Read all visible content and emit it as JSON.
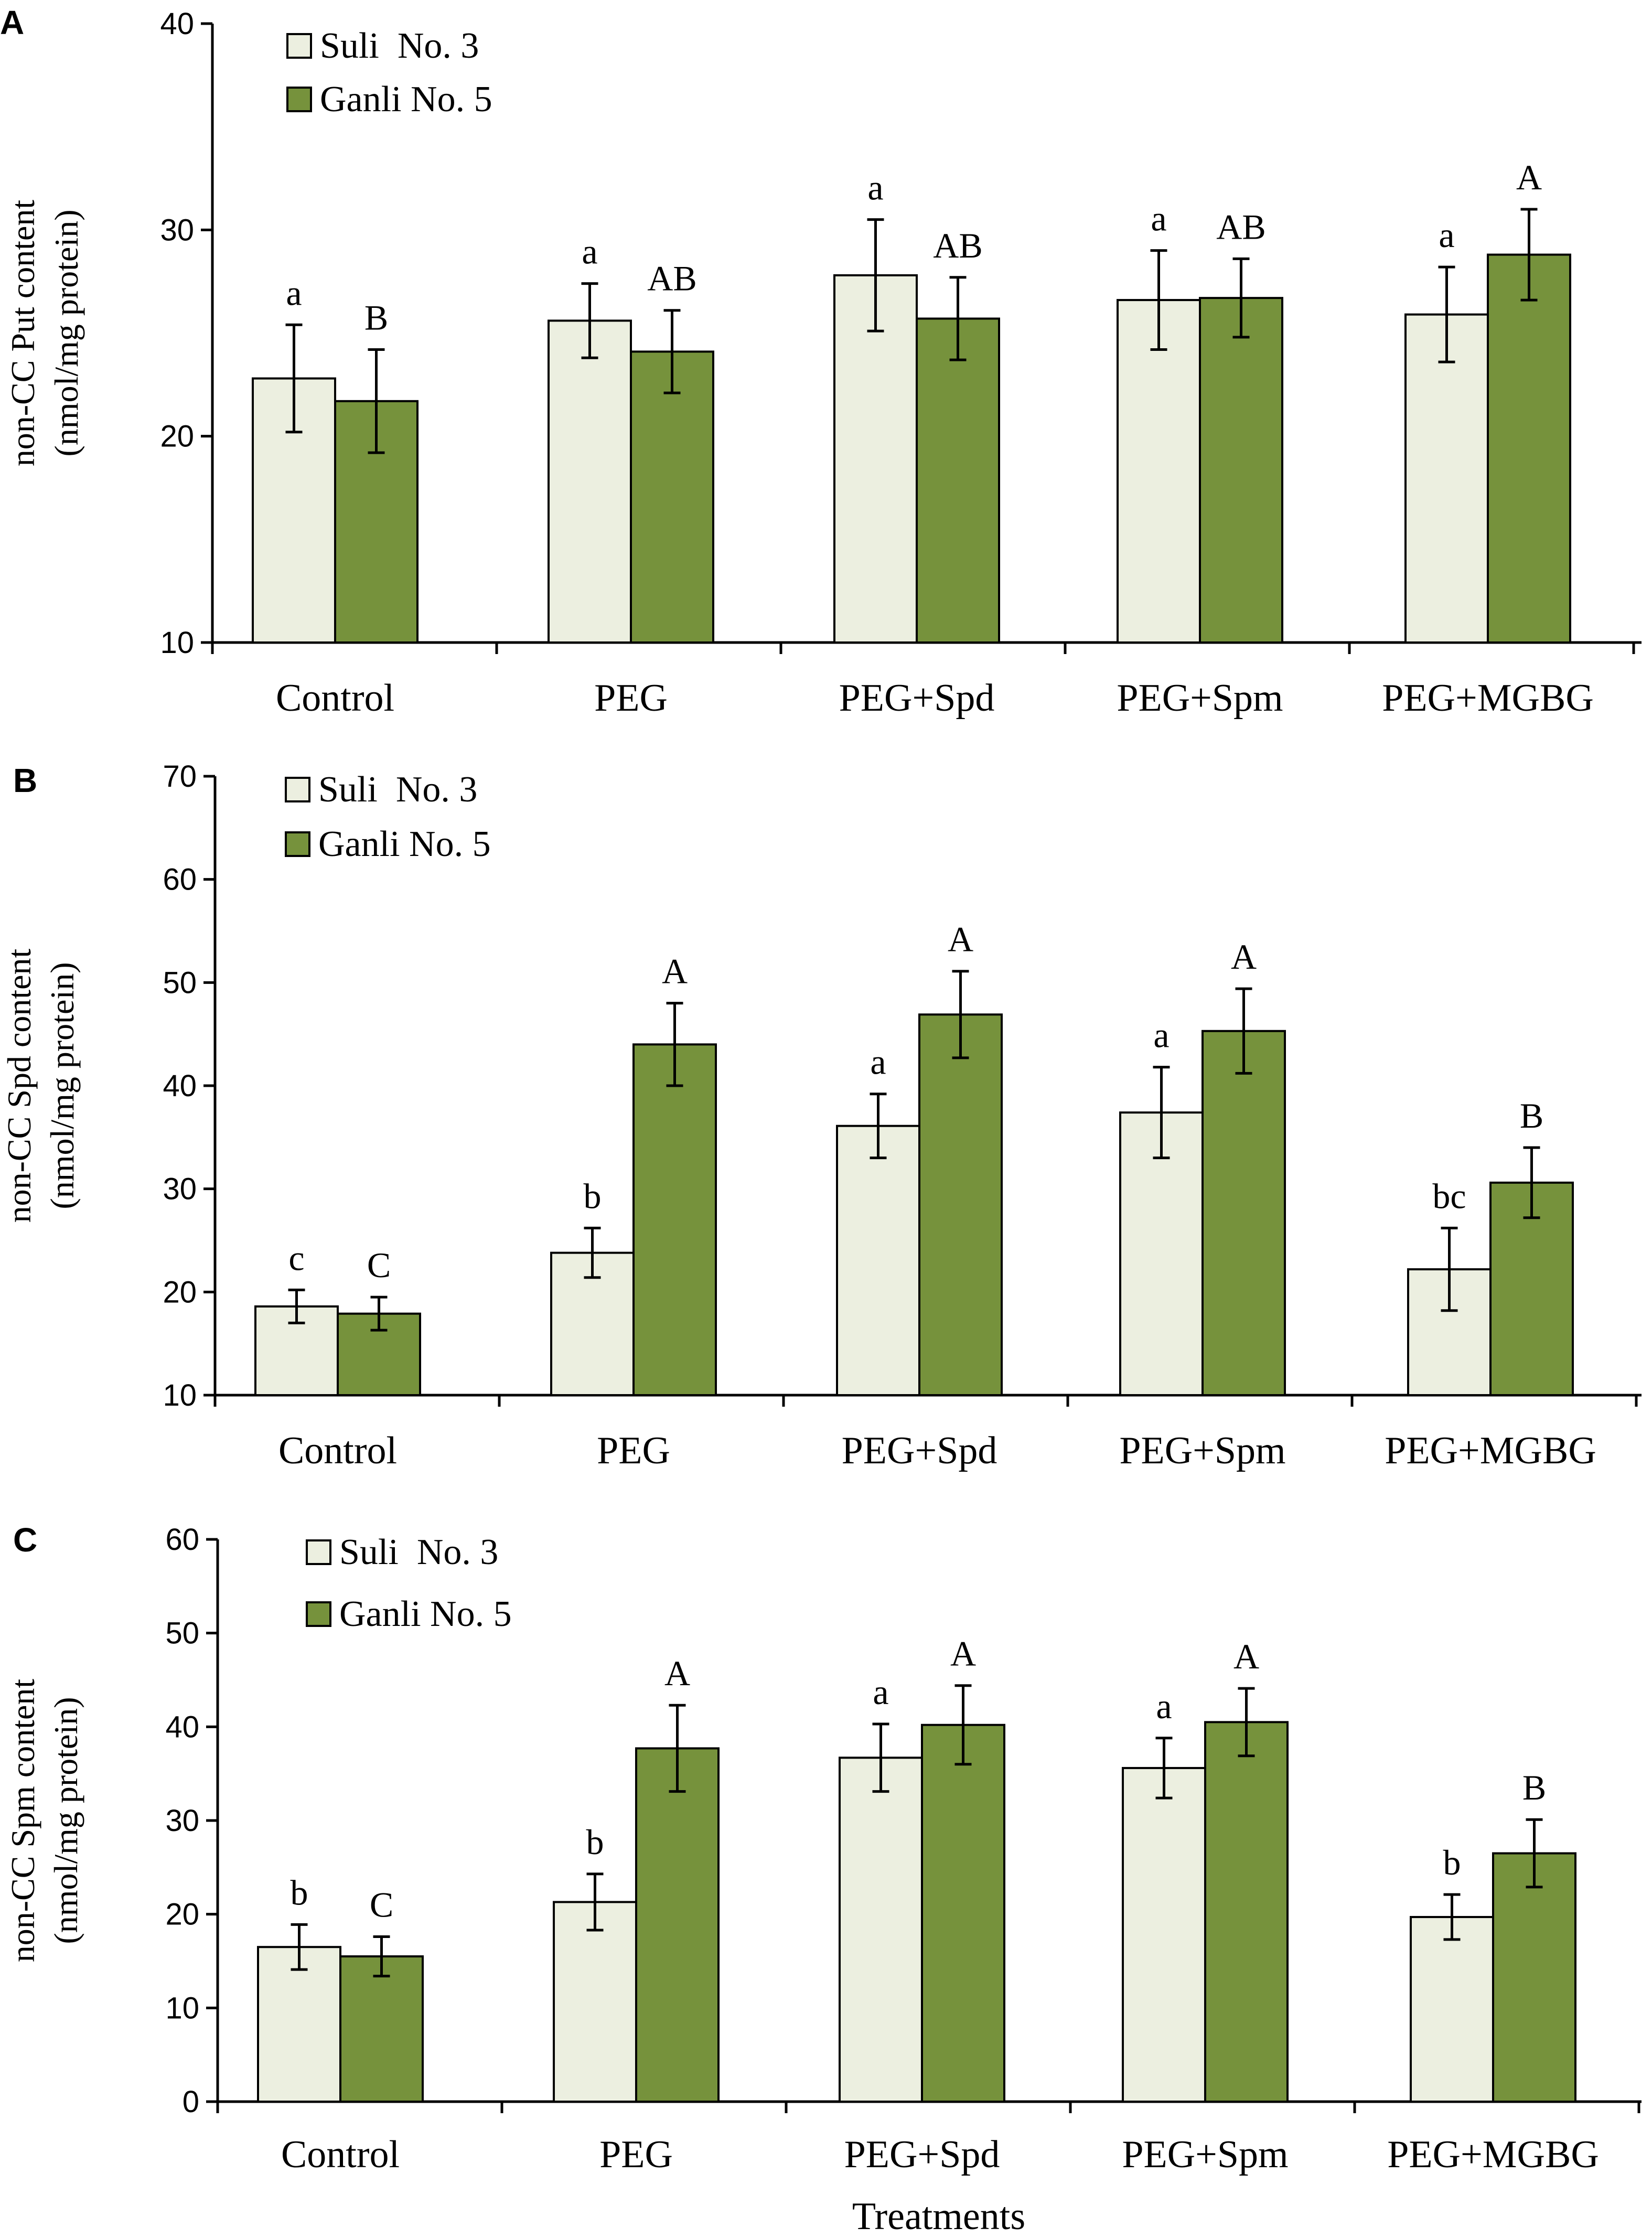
{
  "colors": {
    "suli": "#ECEFE0",
    "ganli": "#76923C",
    "stroke": "#000000"
  },
  "chart_data": [
    {
      "type": "bar",
      "panel": "A",
      "ylabel_line1": "non-CC Put content",
      "ylabel_line2": "(nmol/mg protein)",
      "xlabel": "",
      "ylim": [
        10,
        40
      ],
      "yticks": [
        10,
        20,
        30,
        40
      ],
      "categories": [
        "Control",
        "PEG",
        "PEG+Spd",
        "PEG+Spm",
        "PEG+MGBG"
      ],
      "legend": [
        "Suli  No. 3",
        "Ganli No. 5"
      ],
      "series": [
        {
          "name": "Suli  No. 3",
          "values": [
            22.8,
            25.6,
            27.8,
            26.6,
            25.9
          ],
          "errors": [
            2.6,
            1.8,
            2.7,
            2.4,
            2.3
          ],
          "letters": [
            "a",
            "a",
            "a",
            "a",
            "a"
          ]
        },
        {
          "name": "Ganli No. 5",
          "values": [
            21.7,
            24.1,
            25.7,
            26.7,
            28.8
          ],
          "errors": [
            2.5,
            2.0,
            2.0,
            1.9,
            2.2
          ],
          "letters": [
            "B",
            "AB",
            "AB",
            "AB",
            "A"
          ]
        }
      ]
    },
    {
      "type": "bar",
      "panel": "B",
      "ylabel_line1": "non-CC Spd content",
      "ylabel_line2": "(nmol/mg protein)",
      "xlabel": "",
      "ylim": [
        10,
        70
      ],
      "yticks": [
        10,
        20,
        30,
        40,
        50,
        60,
        70
      ],
      "categories": [
        "Control",
        "PEG",
        "PEG+Spd",
        "PEG+Spm",
        "PEG+MGBG"
      ],
      "legend": [
        "Suli  No. 3",
        "Ganli No. 5"
      ],
      "series": [
        {
          "name": "Suli  No. 3",
          "values": [
            18.6,
            23.8,
            36.1,
            37.4,
            22.2
          ],
          "errors": [
            1.6,
            2.4,
            3.1,
            4.4,
            4.0
          ],
          "letters": [
            "c",
            "b",
            "a",
            "a",
            "bc"
          ]
        },
        {
          "name": "Ganli No. 5",
          "values": [
            17.9,
            44.0,
            46.9,
            45.3,
            30.6
          ],
          "errors": [
            1.6,
            4.0,
            4.2,
            4.1,
            3.4
          ],
          "letters": [
            "C",
            "A",
            "A",
            "A",
            "B"
          ]
        }
      ]
    },
    {
      "type": "bar",
      "panel": "C",
      "ylabel_line1": "non-CC Spm content",
      "ylabel_line2": "(nmol/mg  protein)",
      "xlabel": "Treatments",
      "ylim": [
        0,
        60
      ],
      "yticks": [
        0,
        10,
        20,
        30,
        40,
        50,
        60
      ],
      "categories": [
        "Control",
        "PEG",
        "PEG+Spd",
        "PEG+Spm",
        "PEG+MGBG"
      ],
      "legend": [
        "Suli  No. 3",
        "Ganli No. 5"
      ],
      "series": [
        {
          "name": "Suli  No. 3",
          "values": [
            16.5,
            21.3,
            36.7,
            35.6,
            19.7
          ],
          "errors": [
            2.4,
            3.0,
            3.6,
            3.2,
            2.4
          ],
          "letters": [
            "b",
            "b",
            "a",
            "a",
            "b"
          ]
        },
        {
          "name": "Ganli No. 5",
          "values": [
            15.5,
            37.7,
            40.2,
            40.5,
            26.5
          ],
          "errors": [
            2.1,
            4.6,
            4.2,
            3.6,
            3.6
          ],
          "letters": [
            "C",
            "A",
            "A",
            "A",
            "B"
          ]
        }
      ]
    }
  ]
}
